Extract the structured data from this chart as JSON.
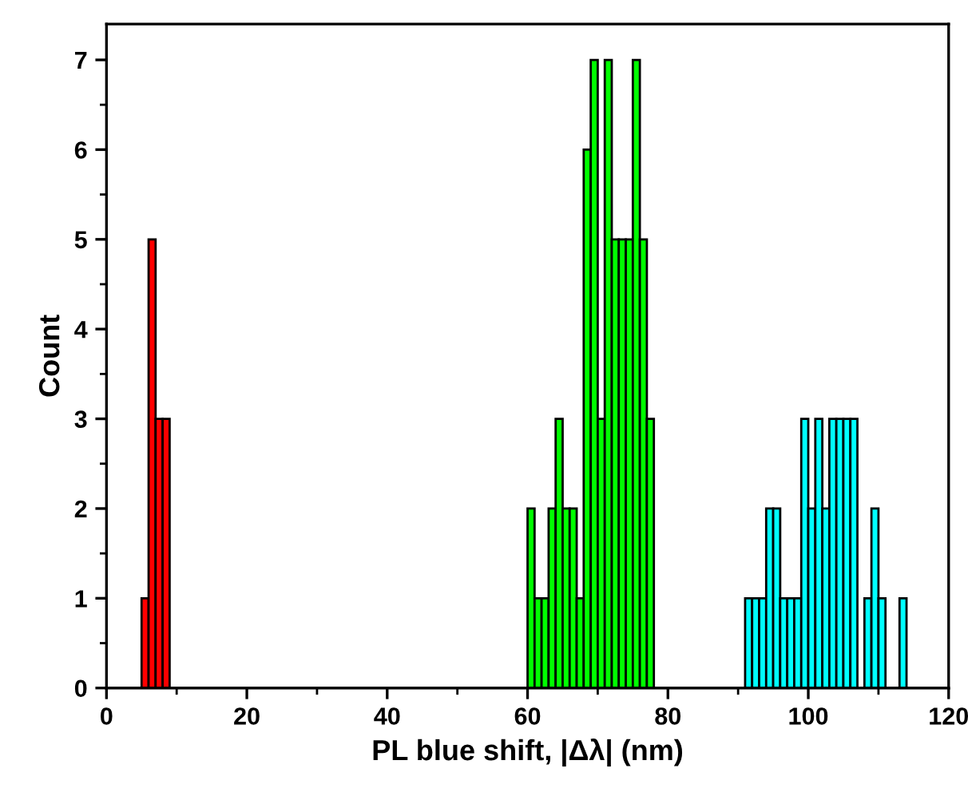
{
  "chart_data": {
    "type": "histogram",
    "xlabel": "PL blue shift, |Δλ| (nm)",
    "ylabel": "Count",
    "bins": [
      5,
      6,
      7,
      8,
      9,
      10,
      11,
      12,
      13,
      14,
      15,
      16,
      17,
      18,
      19,
      20,
      21,
      22,
      23,
      24,
      25,
      26,
      27,
      28,
      29,
      30,
      31,
      32,
      33,
      34,
      35,
      36,
      37,
      38,
      39,
      40,
      41,
      42,
      43,
      44,
      45,
      46,
      47,
      48,
      49,
      50,
      51,
      52,
      53,
      54,
      55,
      56,
      57,
      58,
      59,
      60,
      61,
      62,
      63,
      64,
      65,
      66,
      67,
      68,
      69,
      70,
      71,
      72,
      73,
      74,
      75,
      76,
      77,
      78,
      79,
      80,
      81,
      82,
      83,
      84,
      85,
      86,
      87,
      88,
      89,
      90,
      91,
      92,
      93,
      94,
      95,
      96,
      97,
      98,
      99,
      100,
      101,
      102,
      103,
      104,
      105,
      106,
      107,
      108,
      109,
      110,
      111,
      112,
      113,
      114
    ],
    "values": [
      1,
      5,
      3,
      3,
      null,
      null,
      null,
      null,
      null,
      null,
      null,
      null,
      null,
      null,
      null,
      null,
      null,
      null,
      null,
      null,
      null,
      null,
      null,
      null,
      null,
      null,
      null,
      null,
      null,
      null,
      null,
      null,
      null,
      null,
      null,
      null,
      null,
      null,
      null,
      null,
      null,
      null,
      null,
      null,
      null,
      null,
      null,
      null,
      null,
      null,
      null,
      null,
      null,
      null,
      null,
      2,
      1,
      1,
      2,
      3,
      2,
      2,
      1,
      6,
      7,
      3,
      7,
      5,
      5,
      5,
      7,
      5,
      3,
      null,
      null,
      null,
      null,
      null,
      null,
      null,
      null,
      null,
      null,
      null,
      null,
      null,
      1,
      1,
      1,
      2,
      2,
      1,
      1,
      1,
      3,
      2,
      3,
      2,
      3,
      3,
      3,
      3,
      null,
      1,
      2,
      1,
      null,
      null,
      1
    ],
    "colors": [
      "#ff0000",
      "#ff0000",
      "#ff0000",
      "#ff0000",
      null,
      null,
      null,
      null,
      null,
      null,
      null,
      null,
      null,
      null,
      null,
      null,
      null,
      null,
      null,
      null,
      null,
      null,
      null,
      null,
      null,
      null,
      null,
      null,
      null,
      null,
      null,
      null,
      null,
      null,
      null,
      null,
      null,
      null,
      null,
      null,
      null,
      null,
      null,
      null,
      null,
      null,
      null,
      null,
      null,
      null,
      null,
      null,
      null,
      null,
      null,
      "#00ff00",
      "#00ff00",
      "#00ff00",
      "#00ff00",
      "#00ff00",
      "#00ff00",
      "#00ff00",
      "#00ff00",
      "#00ff00",
      "#00ff00",
      "#00ff00",
      "#00ff00",
      "#00ff00",
      "#00ff00",
      "#00ff00",
      "#00ff00",
      "#00ff00",
      "#00ff00",
      null,
      null,
      null,
      null,
      null,
      null,
      null,
      null,
      null,
      null,
      null,
      null,
      null,
      "#00ffff",
      "#00ffff",
      "#00ffff",
      "#00ffff",
      "#00ffff",
      "#00ffff",
      "#00ffff",
      "#00ffff",
      "#00ffff",
      "#00ffff",
      "#00ffff",
      "#00ffff",
      "#00ffff",
      "#00ffff",
      "#00ffff",
      "#00ffff",
      null,
      "#00ffff",
      "#00ffff",
      "#00ffff",
      null,
      null,
      "#00ffff"
    ],
    "xlim": [
      0,
      120
    ],
    "ylim": [
      0,
      7.4
    ],
    "xticks": [
      0,
      {
        "value": 10,
        "label": null
      },
      20,
      {
        "value": 30,
        "label": null
      },
      40,
      {
        "value": 50,
        "label": null
      },
      60,
      {
        "value": 70,
        "label": null
      },
      80,
      {
        "value": 90,
        "label": null
      },
      100,
      {
        "value": 110,
        "label": null
      },
      120
    ],
    "yticks": [
      0,
      {
        "value": 0.5,
        "label": null
      },
      1,
      {
        "value": 1.5,
        "label": null
      },
      2,
      {
        "value": 2.5,
        "label": null
      },
      3,
      {
        "value": 3.5,
        "label": null
      },
      4,
      {
        "value": 4.5,
        "label": null
      },
      5,
      {
        "value": 5.5,
        "label": null
      },
      6,
      {
        "value": 6.5,
        "label": null
      },
      7
    ],
    "grid": false,
    "legend": false
  }
}
